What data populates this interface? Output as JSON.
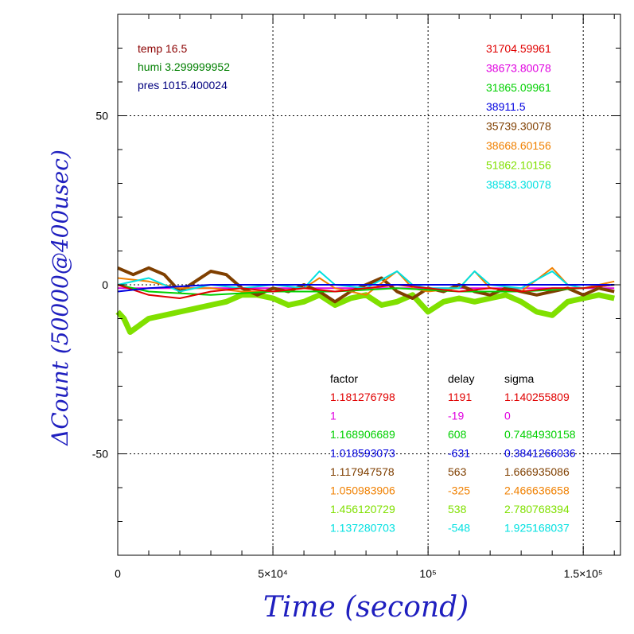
{
  "chart_data": {
    "type": "line",
    "title": "",
    "xlabel": "Time (second)",
    "ylabel": "ΔCount (50000@400usec)",
    "xlim": [
      0,
      162000
    ],
    "ylim": [
      -80,
      80
    ],
    "grid": true,
    "x_ticks": [
      {
        "value": 0,
        "label": "0"
      },
      {
        "value": 50000,
        "label": "5×10⁴"
      },
      {
        "value": 100000,
        "label": "10⁵"
      },
      {
        "value": 150000,
        "label": "1.5×10⁵"
      }
    ],
    "y_ticks": [
      {
        "value": 50,
        "label": "50"
      },
      {
        "value": 0,
        "label": "0"
      },
      {
        "value": -50,
        "label": "-50"
      }
    ],
    "env": [
      {
        "text": "temp 16.5",
        "color": "#8b0000"
      },
      {
        "text": "humi 3.299999952",
        "color": "#007f00"
      },
      {
        "text": "pres 1015.400024",
        "color": "#00007f"
      }
    ],
    "legend_columns": [
      "factor",
      "delay",
      "sigma"
    ],
    "series": [
      {
        "mean": "31704.59961",
        "factor": "1.181276798",
        "delay": "1191",
        "sigma": "1.140255809",
        "color": "#e00000",
        "points": [
          [
            0,
            0
          ],
          [
            10000,
            -3
          ],
          [
            20000,
            -4
          ],
          [
            30000,
            -2
          ],
          [
            40000,
            -1
          ],
          [
            50000,
            -2
          ],
          [
            60000,
            -1
          ],
          [
            70000,
            -2
          ],
          [
            80000,
            -1
          ],
          [
            90000,
            0
          ],
          [
            100000,
            -1
          ],
          [
            110000,
            -2
          ],
          [
            120000,
            -1
          ],
          [
            130000,
            -2
          ],
          [
            140000,
            -1
          ],
          [
            150000,
            -1
          ],
          [
            160000,
            0
          ]
        ]
      },
      {
        "mean": "38673.80078",
        "factor": "1",
        "delay": "-19",
        "sigma": "0",
        "color": "#e000e0",
        "points": [
          [
            0,
            -1
          ],
          [
            40000,
            -1
          ],
          [
            80000,
            -1
          ],
          [
            120000,
            -1
          ],
          [
            160000,
            -1
          ]
        ]
      },
      {
        "mean": "31865.09961",
        "factor": "1.168906689",
        "delay": "608",
        "sigma": "0.7484930158",
        "color": "#00d000",
        "points": [
          [
            0,
            0
          ],
          [
            10000,
            -2
          ],
          [
            30000,
            -3
          ],
          [
            50000,
            -2
          ],
          [
            70000,
            -2
          ],
          [
            90000,
            -1
          ],
          [
            110000,
            -2
          ],
          [
            130000,
            -2
          ],
          [
            150000,
            -1
          ],
          [
            160000,
            0
          ]
        ]
      },
      {
        "mean": "38911.5",
        "factor": "1.018593073",
        "delay": "-631",
        "sigma": "0.3841266036",
        "color": "#0000e0",
        "points": [
          [
            0,
            -2
          ],
          [
            10000,
            -1
          ],
          [
            30000,
            0
          ],
          [
            50000,
            0
          ],
          [
            70000,
            0
          ],
          [
            90000,
            0
          ],
          [
            110000,
            0
          ],
          [
            130000,
            0
          ],
          [
            150000,
            0
          ],
          [
            160000,
            0
          ]
        ]
      },
      {
        "mean": "35739.30078",
        "factor": "1.117947578",
        "delay": "563",
        "sigma": "1.666935086",
        "color": "#7f3f00",
        "points": [
          [
            0,
            5
          ],
          [
            5000,
            3
          ],
          [
            10000,
            5
          ],
          [
            15000,
            3
          ],
          [
            20000,
            -2
          ],
          [
            25000,
            1
          ],
          [
            30000,
            4
          ],
          [
            35000,
            3
          ],
          [
            40000,
            -1
          ],
          [
            45000,
            -3
          ],
          [
            50000,
            -1
          ],
          [
            55000,
            -2
          ],
          [
            60000,
            0
          ],
          [
            65000,
            -2
          ],
          [
            70000,
            -5
          ],
          [
            75000,
            -2
          ],
          [
            80000,
            0
          ],
          [
            85000,
            2
          ],
          [
            90000,
            -2
          ],
          [
            95000,
            -4
          ],
          [
            100000,
            -1
          ],
          [
            105000,
            -2
          ],
          [
            110000,
            0
          ],
          [
            115000,
            -2
          ],
          [
            120000,
            -3
          ],
          [
            125000,
            -1
          ],
          [
            130000,
            -2
          ],
          [
            135000,
            -3
          ],
          [
            140000,
            -2
          ],
          [
            145000,
            -1
          ],
          [
            150000,
            -3
          ],
          [
            155000,
            -1
          ],
          [
            160000,
            -2
          ]
        ]
      },
      {
        "mean": "38668.60156",
        "factor": "1.050983906",
        "delay": "-325",
        "sigma": "2.466636658",
        "color": "#f08000",
        "points": [
          [
            0,
            2
          ],
          [
            10000,
            1
          ],
          [
            20000,
            -1
          ],
          [
            30000,
            -1
          ],
          [
            40000,
            -2
          ],
          [
            50000,
            -2
          ],
          [
            60000,
            -1
          ],
          [
            65000,
            2
          ],
          [
            70000,
            -1
          ],
          [
            80000,
            -3
          ],
          [
            90000,
            4
          ],
          [
            95000,
            -1
          ],
          [
            100000,
            -2
          ],
          [
            110000,
            -1
          ],
          [
            115000,
            4
          ],
          [
            120000,
            -1
          ],
          [
            130000,
            -2
          ],
          [
            140000,
            5
          ],
          [
            145000,
            0
          ],
          [
            150000,
            -1
          ],
          [
            160000,
            1
          ]
        ]
      },
      {
        "mean": "51862.10156",
        "factor": "1.456120729",
        "delay": "538",
        "sigma": "2.780768394",
        "color": "#80e000",
        "points": [
          [
            0,
            -8
          ],
          [
            2000,
            -10
          ],
          [
            4000,
            -14
          ],
          [
            7000,
            -12
          ],
          [
            10000,
            -10
          ],
          [
            15000,
            -9
          ],
          [
            20000,
            -8
          ],
          [
            25000,
            -7
          ],
          [
            30000,
            -6
          ],
          [
            35000,
            -5
          ],
          [
            40000,
            -3
          ],
          [
            45000,
            -3
          ],
          [
            50000,
            -4
          ],
          [
            55000,
            -6
          ],
          [
            60000,
            -5
          ],
          [
            65000,
            -3
          ],
          [
            70000,
            -6
          ],
          [
            75000,
            -4
          ],
          [
            80000,
            -3
          ],
          [
            85000,
            -6
          ],
          [
            90000,
            -5
          ],
          [
            95000,
            -3
          ],
          [
            100000,
            -8
          ],
          [
            105000,
            -5
          ],
          [
            110000,
            -4
          ],
          [
            115000,
            -5
          ],
          [
            120000,
            -4
          ],
          [
            125000,
            -3
          ],
          [
            130000,
            -5
          ],
          [
            135000,
            -8
          ],
          [
            140000,
            -9
          ],
          [
            145000,
            -5
          ],
          [
            150000,
            -4
          ],
          [
            155000,
            -3
          ],
          [
            160000,
            -4
          ]
        ]
      },
      {
        "mean": "38583.30078",
        "factor": "1.137280703",
        "delay": "-548",
        "sigma": "1.925168037",
        "color": "#00e0e0",
        "points": [
          [
            0,
            0
          ],
          [
            10000,
            2
          ],
          [
            15000,
            0
          ],
          [
            20000,
            -2
          ],
          [
            30000,
            0
          ],
          [
            40000,
            -1
          ],
          [
            50000,
            0
          ],
          [
            60000,
            -1
          ],
          [
            65000,
            4
          ],
          [
            70000,
            0
          ],
          [
            80000,
            -1
          ],
          [
            90000,
            4
          ],
          [
            95000,
            0
          ],
          [
            100000,
            -1
          ],
          [
            110000,
            -1
          ],
          [
            115000,
            4
          ],
          [
            120000,
            0
          ],
          [
            130000,
            -1
          ],
          [
            140000,
            4
          ],
          [
            145000,
            0
          ],
          [
            150000,
            -1
          ],
          [
            160000,
            0
          ]
        ]
      }
    ]
  }
}
